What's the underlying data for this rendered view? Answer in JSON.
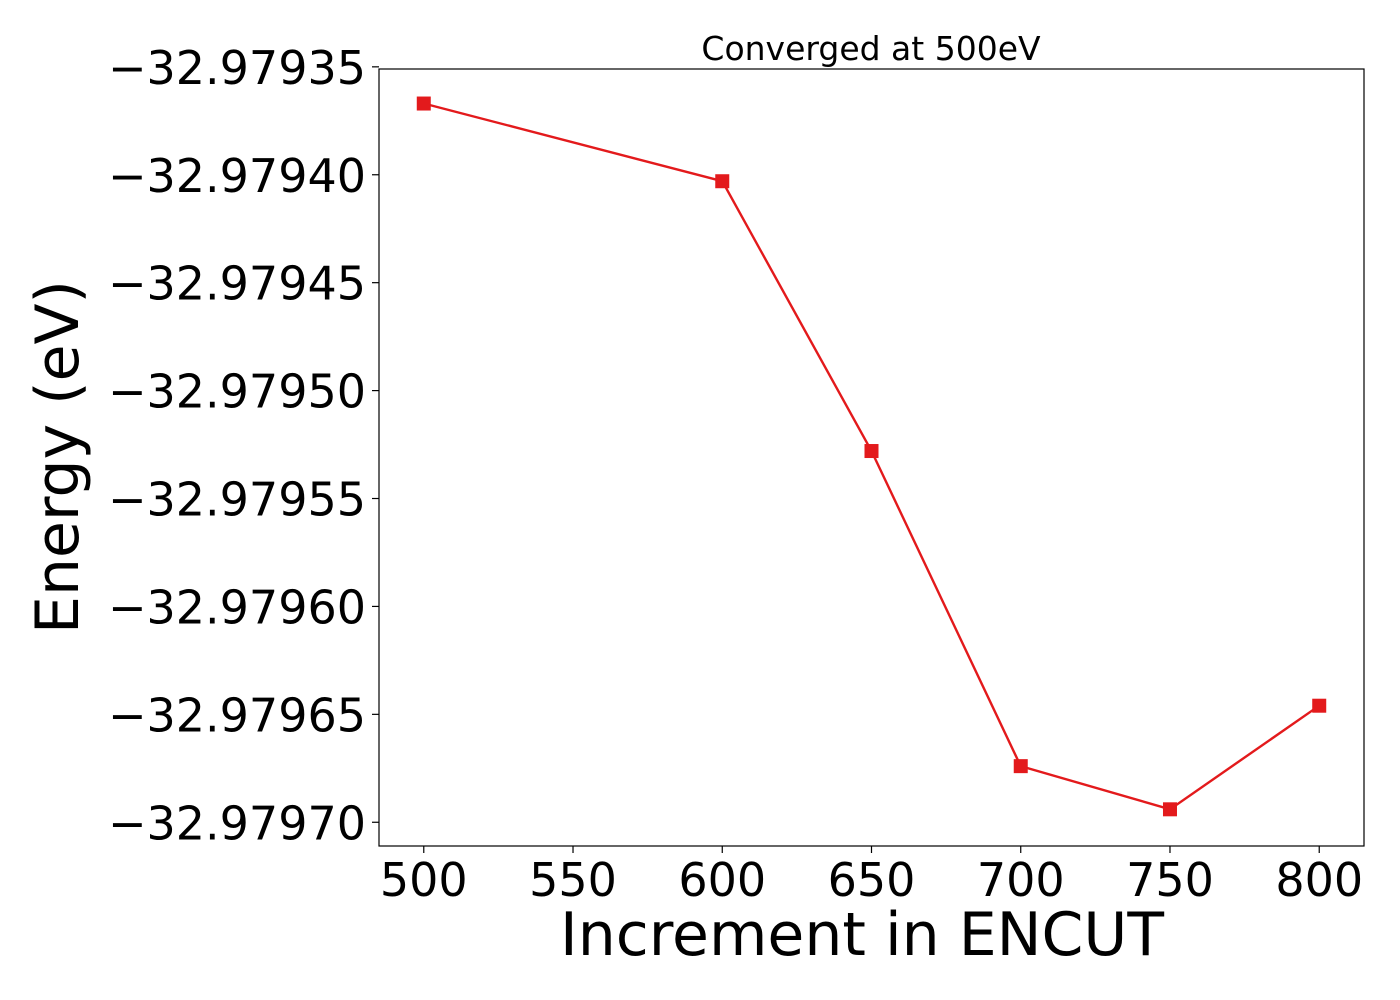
{
  "chart_data": {
    "type": "line",
    "title": "Converged at 500eV",
    "xlabel": "Increment in ENCUT",
    "ylabel": "Energy (eV)",
    "x": [
      500,
      600,
      650,
      700,
      750,
      800
    ],
    "series": [
      {
        "values": [
          -32.979367,
          -32.979403,
          -32.979528,
          -32.979674,
          -32.979694,
          -32.979646
        ],
        "color": "#e31a1c",
        "marker": "square"
      }
    ],
    "xlim": [
      485,
      815
    ],
    "ylim": [
      -32.979711,
      -32.979351
    ],
    "xticks": [
      500,
      550,
      600,
      650,
      700,
      750,
      800
    ],
    "xtick_labels": [
      "500",
      "550",
      "600",
      "650",
      "700",
      "750",
      "800"
    ],
    "yticks": [
      -32.97935,
      -32.9794,
      -32.97945,
      -32.9795,
      -32.97955,
      -32.9796,
      -32.97965,
      -32.9797
    ],
    "ytick_labels": [
      "−32.97935",
      "−32.97940",
      "−32.97945",
      "−32.97950",
      "−32.97955",
      "−32.97960",
      "−32.97965",
      "−32.97970"
    ],
    "grid": false
  }
}
